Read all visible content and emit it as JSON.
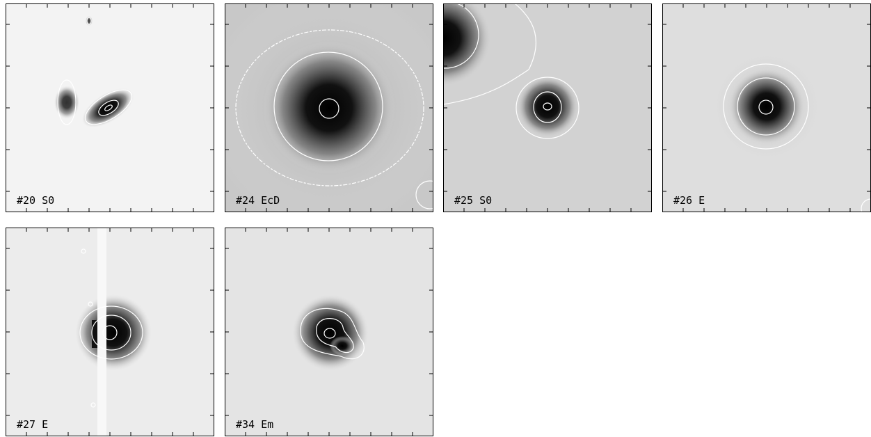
{
  "panels": [
    {
      "label": "#20 S0"
    },
    {
      "label": "#24 EcD"
    },
    {
      "label": "#25 S0"
    },
    {
      "label": "#26 E"
    },
    {
      "label": "#27 E"
    },
    {
      "label": "#34 Em"
    }
  ]
}
